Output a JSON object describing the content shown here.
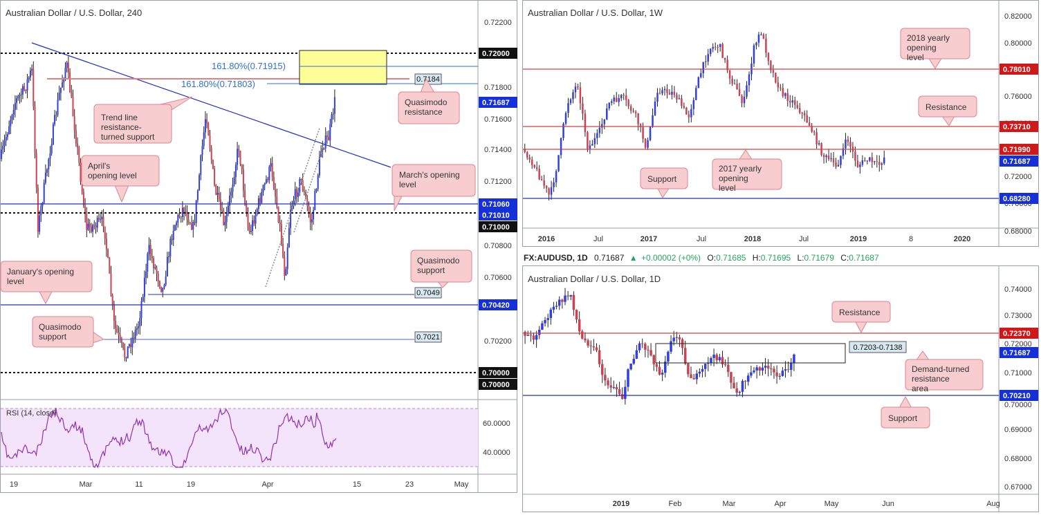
{
  "colors": {
    "up": "#2f3fe0",
    "down": "#d04050",
    "wick": "#222222",
    "red_line": "#d04040",
    "blue_line": "#2030c0",
    "callout_bg": "#f7cdd0",
    "callout_border": "#d88890",
    "rsi_fill": "#f3e3fb",
    "rsi_line": "#9030b0",
    "fib_blue": "#3070d0",
    "zone_yellow": "#ffff99"
  },
  "chart_data": [
    {
      "id": "h4",
      "type": "candlestick",
      "title": "Australian Dollar / U.S. Dollar, 240",
      "x_labels": [
        "19",
        "Mar",
        "11",
        "19",
        "Apr",
        "15",
        "23",
        "May"
      ],
      "y_ticks": [
        "0.72200",
        "0.71800",
        "0.71600",
        "0.71400",
        "0.71200",
        "0.70800",
        "0.70600",
        "0.70200"
      ],
      "ylim": [
        0.6993,
        0.7226
      ],
      "price_tags": [
        {
          "value": "0.72000",
          "style": "black"
        },
        {
          "value": "0.71687",
          "style": "blue"
        },
        {
          "value": "0.71060",
          "style": "blue"
        },
        {
          "value": "0.71010",
          "style": "blue"
        },
        {
          "value": "0.71000",
          "style": "black"
        },
        {
          "value": "0.70420",
          "style": "blue"
        },
        {
          "value": "0.70000",
          "style": "black"
        },
        {
          "value": "0.70000",
          "style": "black"
        }
      ],
      "levels": [
        {
          "value": 0.72,
          "style": "dashed-black"
        },
        {
          "value": 0.7106,
          "style": "blue"
        },
        {
          "value": 0.7101,
          "style": "dashed-black"
        },
        {
          "value": 0.7042,
          "style": "blue"
        },
        {
          "value": 0.7,
          "style": "dashed-black"
        }
      ],
      "small_tags": [
        "0.7184",
        "0.7049",
        "0.7021"
      ],
      "fib_labels": [
        "161.80%(0.71915)",
        "161.80%(0.71803)"
      ],
      "annotations": [
        "Trend line resistance- turned support",
        "April's opening level",
        "March's opening level",
        "Quasimodo resistance",
        "Quasimodo support",
        "January's opening level",
        "Quasimodo support"
      ],
      "rsi": {
        "label": "RSI (14, close)",
        "ticks": [
          "60.0000",
          "40.0000"
        ],
        "ylim": [
          27,
          70
        ],
        "band": [
          30,
          70
        ]
      }
    },
    {
      "id": "weekly",
      "type": "candlestick",
      "title": "Australian Dollar / U.S. Dollar, 1W",
      "x_labels": [
        "2016",
        "Jul",
        "2017",
        "Jul",
        "2018",
        "Jul",
        "2019",
        "8",
        "2020"
      ],
      "y_ticks": [
        "0.82000",
        "0.80000",
        "0.76000",
        "0.74000",
        "0.72000",
        "0.70000",
        "0.68000"
      ],
      "ylim": [
        0.674,
        0.826
      ],
      "price_tags": [
        {
          "value": "0.78010",
          "style": "red"
        },
        {
          "value": "0.73710",
          "style": "red"
        },
        {
          "value": "0.71990",
          "style": "red"
        },
        {
          "value": "0.71687",
          "style": "blue"
        },
        {
          "value": "0.68280",
          "style": "blue"
        }
      ],
      "levels": [
        {
          "value": 0.7801,
          "style": "red"
        },
        {
          "value": 0.7371,
          "style": "red"
        },
        {
          "value": 0.7199,
          "style": "red"
        },
        {
          "value": 0.6828,
          "style": "blue"
        }
      ],
      "annotations": [
        "2018 yearly opening level",
        "Resistance",
        "2017 yearly opening level",
        "Support"
      ]
    },
    {
      "id": "daily",
      "type": "candlestick",
      "title": "Australian Dollar / U.S. Dollar, 1D",
      "x_labels": [
        "2019",
        "Feb",
        "Mar",
        "Apr",
        "May",
        "Jun",
        "Aug"
      ],
      "y_ticks": [
        "0.74000",
        "0.73000",
        "0.72000",
        "0.71000",
        "0.70000",
        "0.69000",
        "0.68000",
        "0.67000"
      ],
      "ylim": [
        0.6688,
        0.7424
      ],
      "price_tags": [
        {
          "value": "0.72370",
          "style": "red"
        },
        {
          "value": "0.71687",
          "style": "blue"
        },
        {
          "value": "0.70210",
          "style": "blue"
        }
      ],
      "levels": [
        {
          "value": 0.7237,
          "style": "red"
        },
        {
          "value": 0.7021,
          "style": "blue"
        }
      ],
      "zone_label": "0.7203-0.7138",
      "annotations": [
        "Resistance",
        "Demand-turned resistance area",
        "Support"
      ]
    }
  ],
  "info_bar": {
    "symbol": "FX:AUDUSD, 1D",
    "price": "0.71687",
    "change": "+0.00002 (+0%)",
    "o_label": "O:",
    "o": "0.71685",
    "h_label": "H:",
    "h": "0.71695",
    "l_label": "L:",
    "l": "0.71679",
    "c_label": "C:",
    "c": "0.71687"
  }
}
